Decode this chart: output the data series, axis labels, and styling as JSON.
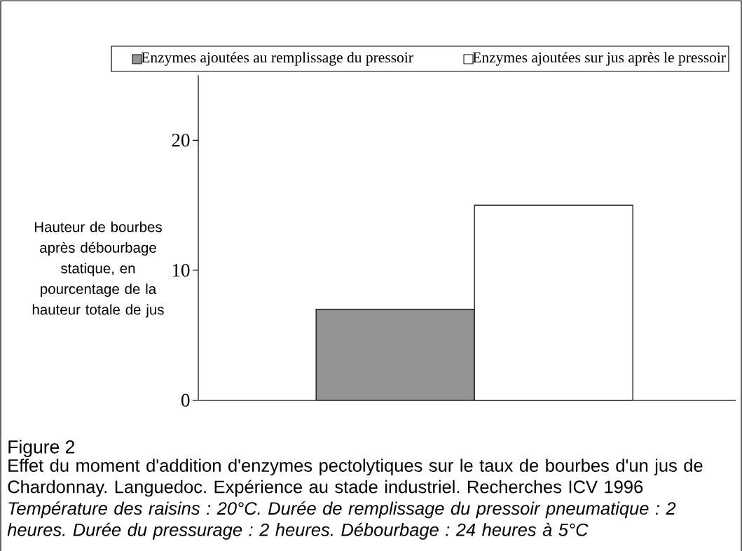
{
  "chart_data": {
    "type": "bar",
    "title": "Figure 2",
    "categories": [
      null
    ],
    "series": [
      {
        "name": "Enzymes ajoutées au remplissage du pressoir",
        "color": "#939393",
        "values": [
          7
        ]
      },
      {
        "name": "Enzymes ajoutées sur jus après le pressoir",
        "color": "#ffffff",
        "values": [
          15
        ]
      }
    ],
    "ylabel": "Hauteur de bourbes après débourbage statique, en pourcentage de la hauteur totale de jus",
    "ylim": [
      0,
      25
    ],
    "yticks": [
      0,
      10,
      20
    ],
    "legend": "top",
    "grid": false,
    "annotations": [
      "Effet du moment d'addition d'enzymes pectolytiques sur le taux de bourbes d'un jus de Chardonnay. Languedoc. Expérience au stade industriel. Recherches ICV 1996",
      "Température des raisins : 20°C. Durée de remplissage du pressoir pneumatique : 2 heures. Durée du pressurage : 2 heures. Débourbage : 24 heures à 5°C"
    ]
  }
}
